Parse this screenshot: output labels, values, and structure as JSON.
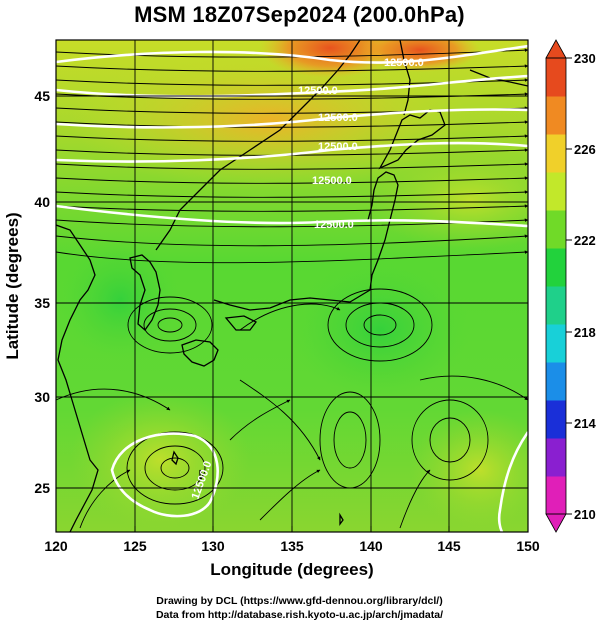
{
  "title": "MSM 18Z07Sep2024 (200.0hPa)",
  "x_axis": {
    "label": "Longitude (degrees)",
    "ticks": [
      120,
      125,
      130,
      135,
      140,
      145,
      150
    ],
    "range": [
      120,
      150
    ]
  },
  "y_axis": {
    "label": "Latitude  (degrees)",
    "ticks": [
      25,
      30,
      35,
      40,
      45
    ],
    "range": [
      22.4,
      47.6
    ]
  },
  "colorbar": {
    "ticks": [
      230,
      226,
      222,
      218,
      214,
      210
    ],
    "range": [
      210,
      230
    ],
    "colors": [
      "#e01fb8",
      "#8a1fd0",
      "#1a2fd8",
      "#1b8ee8",
      "#18d0d8",
      "#1fd08a",
      "#22d23c",
      "#70da28",
      "#c2e82a",
      "#f0d02a",
      "#f08a22",
      "#e64a1e"
    ]
  },
  "contours": {
    "label": "12500.0",
    "color": "#ffffff"
  },
  "credits": {
    "line1": "Drawing by DCL (https://www.gfd-dennou.org/library/dcl/)",
    "line2": "Data from http://database.rish.kyoto-u.ac.jp/arch/jmadata/"
  }
}
